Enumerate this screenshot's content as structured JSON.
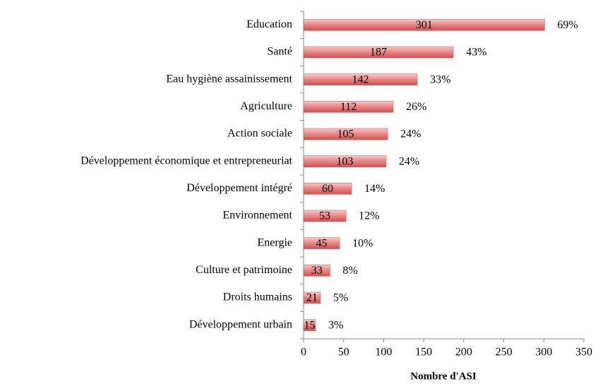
{
  "chart_data": {
    "type": "barh",
    "x_label": "Nombre d'ASI",
    "categories": [
      "Education",
      "Santé",
      "Eau hygiène assainissement",
      "Agriculture",
      "Action sociale",
      "Développement économique et entrepreneuriat",
      "Développement intégré",
      "Environnement",
      "Energie",
      "Culture et patrimoine",
      "Droits humains",
      "Développement urbain"
    ],
    "values": [
      301,
      187,
      142,
      112,
      105,
      103,
      60,
      53,
      45,
      33,
      21,
      15
    ],
    "shares": [
      {
        "value": 69,
        "label": "69%"
      },
      {
        "value": 43,
        "label": "43%"
      },
      {
        "value": 33,
        "label": "33%"
      },
      {
        "value": 26,
        "label": "26%"
      },
      {
        "value": 24,
        "label": "24%"
      },
      {
        "value": 24,
        "label": "24%"
      },
      {
        "value": 14,
        "label": "14%"
      },
      {
        "value": 12,
        "label": "12%"
      },
      {
        "value": 10,
        "label": "10%"
      },
      {
        "value": 8,
        "label": "8%"
      },
      {
        "value": 5,
        "label": "5%"
      },
      {
        "value": 3,
        "label": "3%"
      }
    ],
    "color": "#c0504d",
    "xlim": [
      0,
      350
    ],
    "xticks": [
      0,
      50,
      100,
      150,
      200,
      250,
      300,
      350
    ]
  }
}
